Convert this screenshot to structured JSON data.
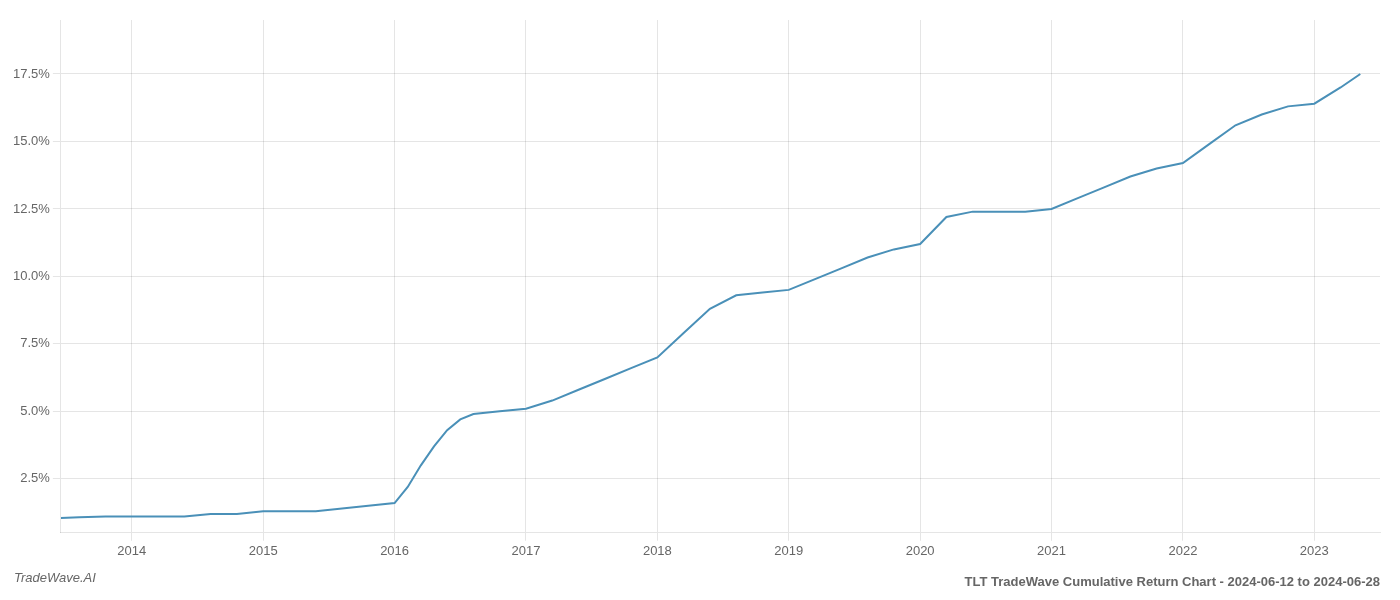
{
  "chart_data": {
    "type": "line",
    "title": "TLT TradeWave Cumulative Return Chart - 2024-06-12 to 2024-06-28",
    "annotations": [
      "TradeWave.AI"
    ],
    "x": [
      2013.46,
      2013.6,
      2013.8,
      2014.0,
      2014.2,
      2014.4,
      2014.6,
      2014.8,
      2015.0,
      2015.2,
      2015.4,
      2015.6,
      2015.8,
      2016.0,
      2016.1,
      2016.2,
      2016.3,
      2016.4,
      2016.5,
      2016.6,
      2016.8,
      2017.0,
      2017.2,
      2017.4,
      2017.6,
      2017.8,
      2018.0,
      2018.2,
      2018.4,
      2018.6,
      2018.8,
      2019.0,
      2019.2,
      2019.4,
      2019.6,
      2019.8,
      2020.0,
      2020.2,
      2020.4,
      2020.6,
      2020.8,
      2021.0,
      2021.2,
      2021.4,
      2021.6,
      2021.8,
      2022.0,
      2022.2,
      2022.4,
      2022.6,
      2022.8,
      2023.0,
      2023.2,
      2023.35
    ],
    "values": [
      0.0105,
      0.0108,
      0.011,
      0.011,
      0.011,
      0.011,
      0.012,
      0.012,
      0.013,
      0.013,
      0.013,
      0.014,
      0.015,
      0.016,
      0.022,
      0.03,
      0.037,
      0.043,
      0.047,
      0.049,
      0.05,
      0.051,
      0.054,
      0.058,
      0.062,
      0.066,
      0.07,
      0.079,
      0.088,
      0.093,
      0.094,
      0.095,
      0.099,
      0.103,
      0.107,
      0.11,
      0.112,
      0.122,
      0.124,
      0.124,
      0.124,
      0.125,
      0.129,
      0.133,
      0.137,
      0.14,
      0.142,
      0.149,
      0.156,
      0.16,
      0.163,
      0.164,
      0.17,
      0.175
    ],
    "color": "#4a90b8",
    "xlim": [
      2013.46,
      2023.5
    ],
    "xticks": [
      2014,
      2015,
      2016,
      2017,
      2018,
      2019,
      2020,
      2021,
      2022,
      2023
    ],
    "ylim": [
      0.005,
      0.195
    ],
    "yticks": [
      {
        "value": 0.025,
        "label": "2.5%"
      },
      {
        "value": 0.05,
        "label": "5.0%"
      },
      {
        "value": 0.075,
        "label": "7.5%"
      },
      {
        "value": 0.1,
        "label": "10.0%"
      },
      {
        "value": 0.125,
        "label": "12.5%"
      },
      {
        "value": 0.15,
        "label": "15.0%"
      },
      {
        "value": 0.175,
        "label": "17.5%"
      }
    ],
    "grid": true
  }
}
